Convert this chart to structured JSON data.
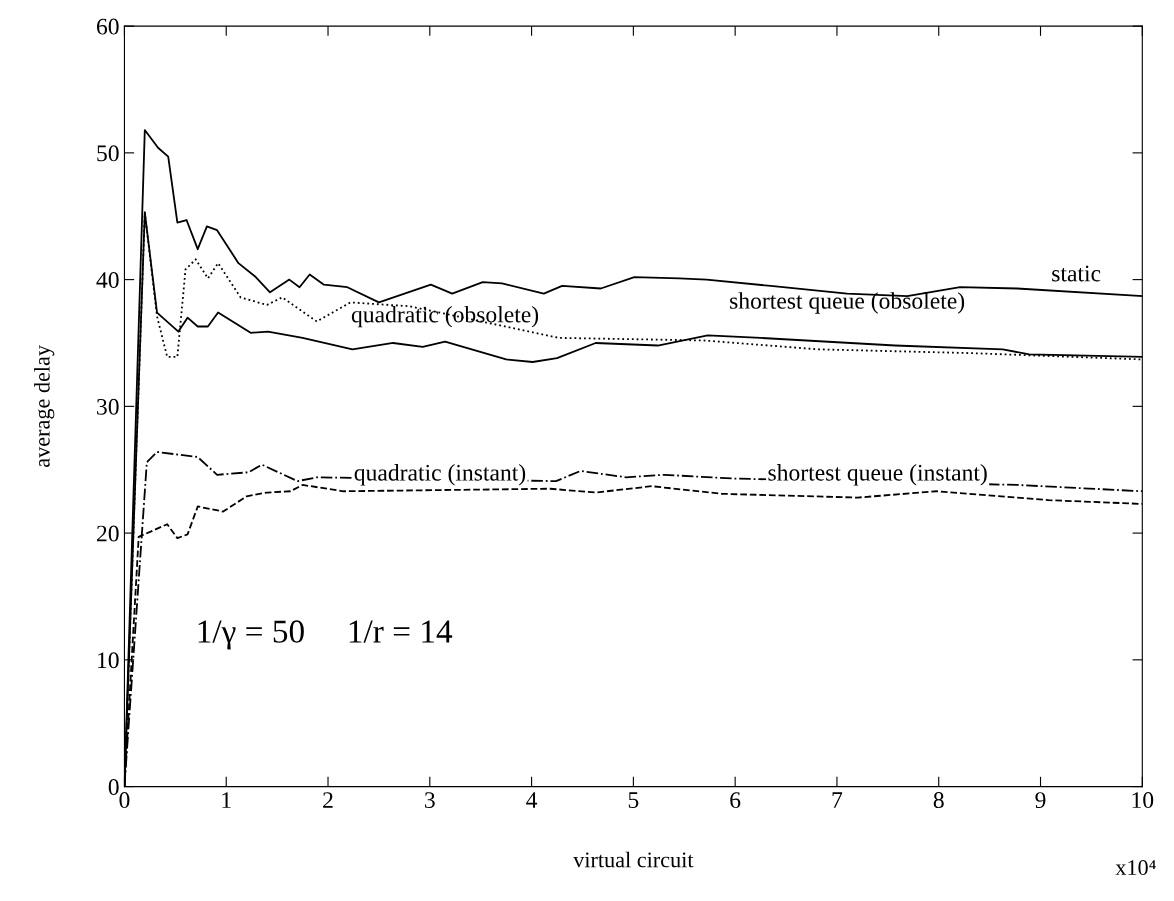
{
  "chart_data": {
    "type": "line",
    "xlabel": "virtual circuit",
    "ylabel": "average delay",
    "xlim": [
      0,
      10
    ],
    "ylim": [
      0,
      60
    ],
    "xticks": [
      0,
      1,
      2,
      3,
      4,
      5,
      6,
      7,
      8,
      9,
      10
    ],
    "yticks": [
      0,
      10,
      20,
      30,
      40,
      50,
      60
    ],
    "grid": false,
    "series": [
      {
        "color": "#000000",
        "line_style": "solid",
        "x": [
          0,
          0.2,
          0.33,
          0.43,
          0.52,
          0.61,
          0.72,
          0.81,
          0.91,
          1.12,
          1.29,
          1.43,
          1.62,
          1.72,
          1.82,
          1.96,
          2.19,
          2.5,
          3.01,
          3.22,
          3.52,
          3.71,
          4.12,
          4.3,
          4.68,
          5.01,
          5.45,
          5.72,
          6.35,
          7.1,
          7.69,
          8.21,
          8.77,
          10
        ],
        "values": [
          0,
          51.8,
          50.4,
          49.7,
          44.5,
          44.7,
          42.4,
          44.2,
          43.9,
          41.3,
          40.2,
          39,
          40,
          39.4,
          40.4,
          39.6,
          39.4,
          38.2,
          39.6,
          38.9,
          39.8,
          39.7,
          38.9,
          39.5,
          39.3,
          40.2,
          40.1,
          40,
          39.5,
          38.9,
          38.7,
          39.4,
          39.3,
          38.7
        ]
      },
      {
        "color": "#000000",
        "line_style": "solid",
        "x": [
          0,
          0.2,
          0.32,
          0.53,
          0.62,
          0.72,
          0.82,
          0.92,
          1.24,
          1.41,
          1.75,
          2.24,
          2.64,
          2.93,
          3.15,
          3.75,
          4.01,
          4.25,
          4.63,
          5.24,
          5.73,
          6.25,
          7.57,
          8.63,
          8.89,
          10
        ],
        "values": [
          0,
          45.3,
          37.4,
          35.9,
          37,
          36.3,
          36.3,
          37.4,
          35.8,
          35.9,
          35.4,
          34.5,
          35,
          34.7,
          35.1,
          33.7,
          33.5,
          33.8,
          35,
          34.8,
          35.6,
          35.4,
          34.8,
          34.5,
          34.1,
          33.9
        ]
      },
      {
        "color": "#000000",
        "line_style": "dotted",
        "x": [
          0,
          0.2,
          0.32,
          0.42,
          0.52,
          0.6,
          0.7,
          0.82,
          0.92,
          1.14,
          1.4,
          1.55,
          1.89,
          2.22,
          2.8,
          4.27,
          5.69,
          6.81,
          8.32,
          10
        ],
        "values": [
          0,
          45.3,
          37.1,
          33.9,
          33.9,
          40.8,
          41.6,
          40.1,
          41.3,
          38.6,
          38,
          38.6,
          36.7,
          38.2,
          37.9,
          35.4,
          35.2,
          34.5,
          34.2,
          33.7
        ]
      },
      {
        "color": "#000000",
        "line_style": "dashdot",
        "x": [
          0,
          0.22,
          0.32,
          0.52,
          0.72,
          0.91,
          1.22,
          1.35,
          1.7,
          1.89,
          4.24,
          4.48,
          4.93,
          5.3,
          5.99,
          8.77,
          10
        ],
        "values": [
          0,
          25.6,
          26.4,
          26.2,
          26,
          24.6,
          24.8,
          25.4,
          24.1,
          24.4,
          24.1,
          24.9,
          24.4,
          24.6,
          24.3,
          23.8,
          23.3
        ]
      },
      {
        "color": "#000000",
        "line_style": "dashed",
        "x": [
          0,
          0.14,
          0.42,
          0.52,
          0.62,
          0.72,
          0.97,
          1.2,
          1.4,
          1.63,
          1.75,
          2.15,
          4.18,
          4.63,
          5.18,
          5.87,
          7.2,
          7.98,
          9.08,
          10
        ],
        "values": [
          0,
          19.7,
          20.7,
          19.6,
          19.9,
          22.1,
          21.7,
          22.9,
          23.2,
          23.3,
          23.8,
          23.3,
          23.5,
          23.2,
          23.7,
          23.1,
          22.8,
          23.3,
          22.6,
          22.3
        ]
      }
    ],
    "annotations": [
      "static",
      "shortest queue (obsolete)",
      "quadratic (obsolete)",
      "quadratic (instant)",
      "shortest queue (instant)",
      "1/γ = 50     1/r = 14",
      "x10⁴"
    ]
  }
}
